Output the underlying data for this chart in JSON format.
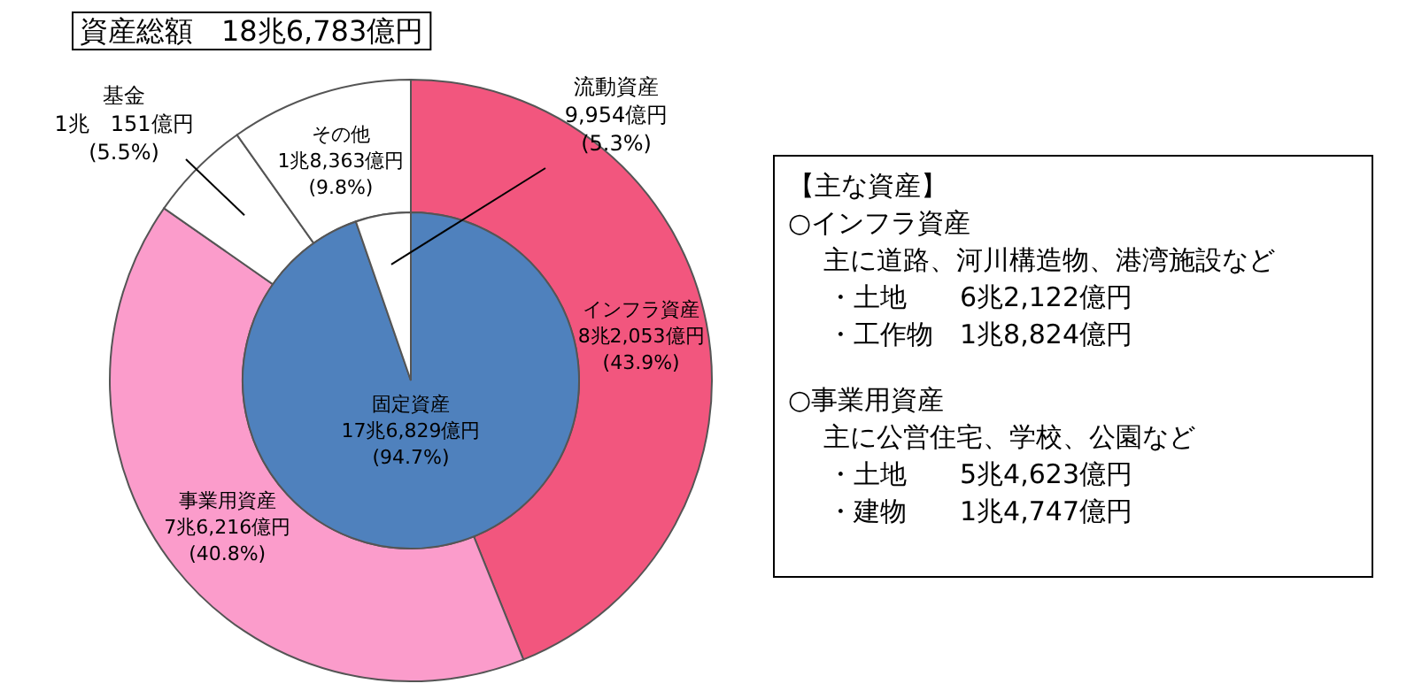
{
  "chart_data": [
    {
      "type": "donut",
      "title": "資産総額　18兆6,783億円",
      "categories": [
        "インフラ資産",
        "事業用資産",
        "基金",
        "その他"
      ],
      "values": [
        43.9,
        40.8,
        5.5,
        9.8
      ],
      "colors": [
        "#f2567e",
        "#fb9ccb",
        "#ffffff",
        "#ffffff"
      ],
      "value_labels": [
        "8兆2,053億円\n(43.9%)",
        "7兆6,216億円\n(40.8%)",
        "1兆　151億円\n(5.5%)",
        "1兆8,363億円\n(9.8%)"
      ]
    },
    {
      "type": "pie",
      "categories": [
        "固定資産",
        "流動資産"
      ],
      "values": [
        94.7,
        5.3
      ],
      "colors": [
        "#4f81bd",
        "#ffffff"
      ],
      "value_labels": [
        "17兆6,829億円\n(94.7%)",
        "9,954億円\n(5.3%)"
      ]
    },
    {
      "type": "other",
      "annotations": [
        "【主な資産】",
        "○インフラ資産",
        "主に道路、河川構造物、港湾施設など",
        "・土地　　6兆2,122億円",
        "・工作物　1兆8,824億円",
        "○事業用資産",
        "主に公営住宅、学校、公園など",
        "・土地　　5兆4,623億円",
        "・建物　　1兆4,747億円"
      ]
    }
  ]
}
